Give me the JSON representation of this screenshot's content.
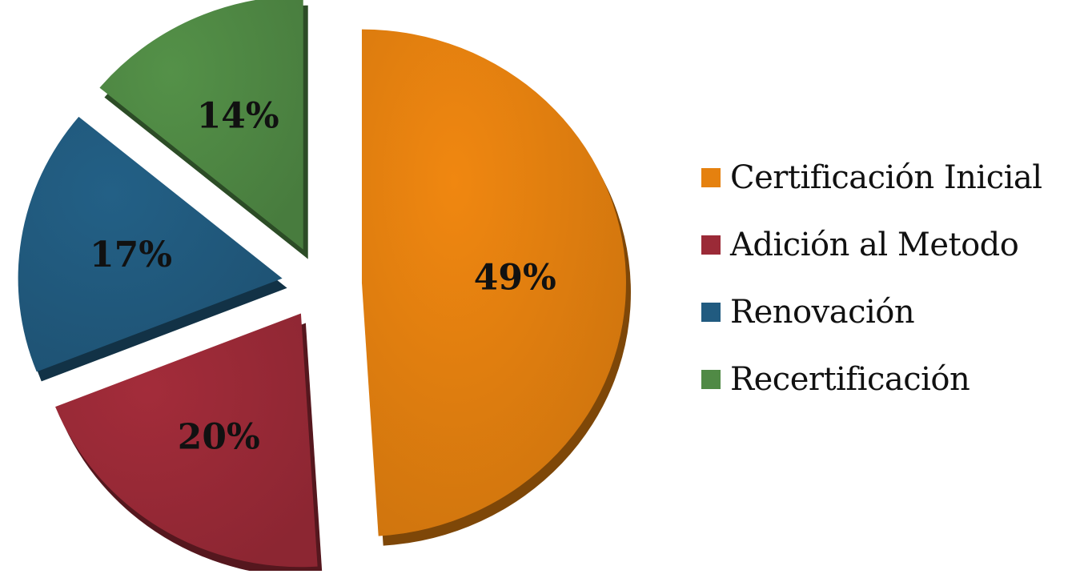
{
  "chart_data": {
    "type": "pie",
    "categories": [
      "Certificación Inicial",
      "Adición al Metodo",
      "Renovación",
      "Recertificación"
    ],
    "values": [
      49,
      20,
      17,
      14
    ],
    "data_labels": [
      "49%",
      "20%",
      "17%",
      "14%"
    ],
    "colors": [
      "#E5810F",
      "#9B2A37",
      "#215B80",
      "#508A45"
    ],
    "title": "",
    "legend_position": "right",
    "exploded": true,
    "style": "3d"
  }
}
